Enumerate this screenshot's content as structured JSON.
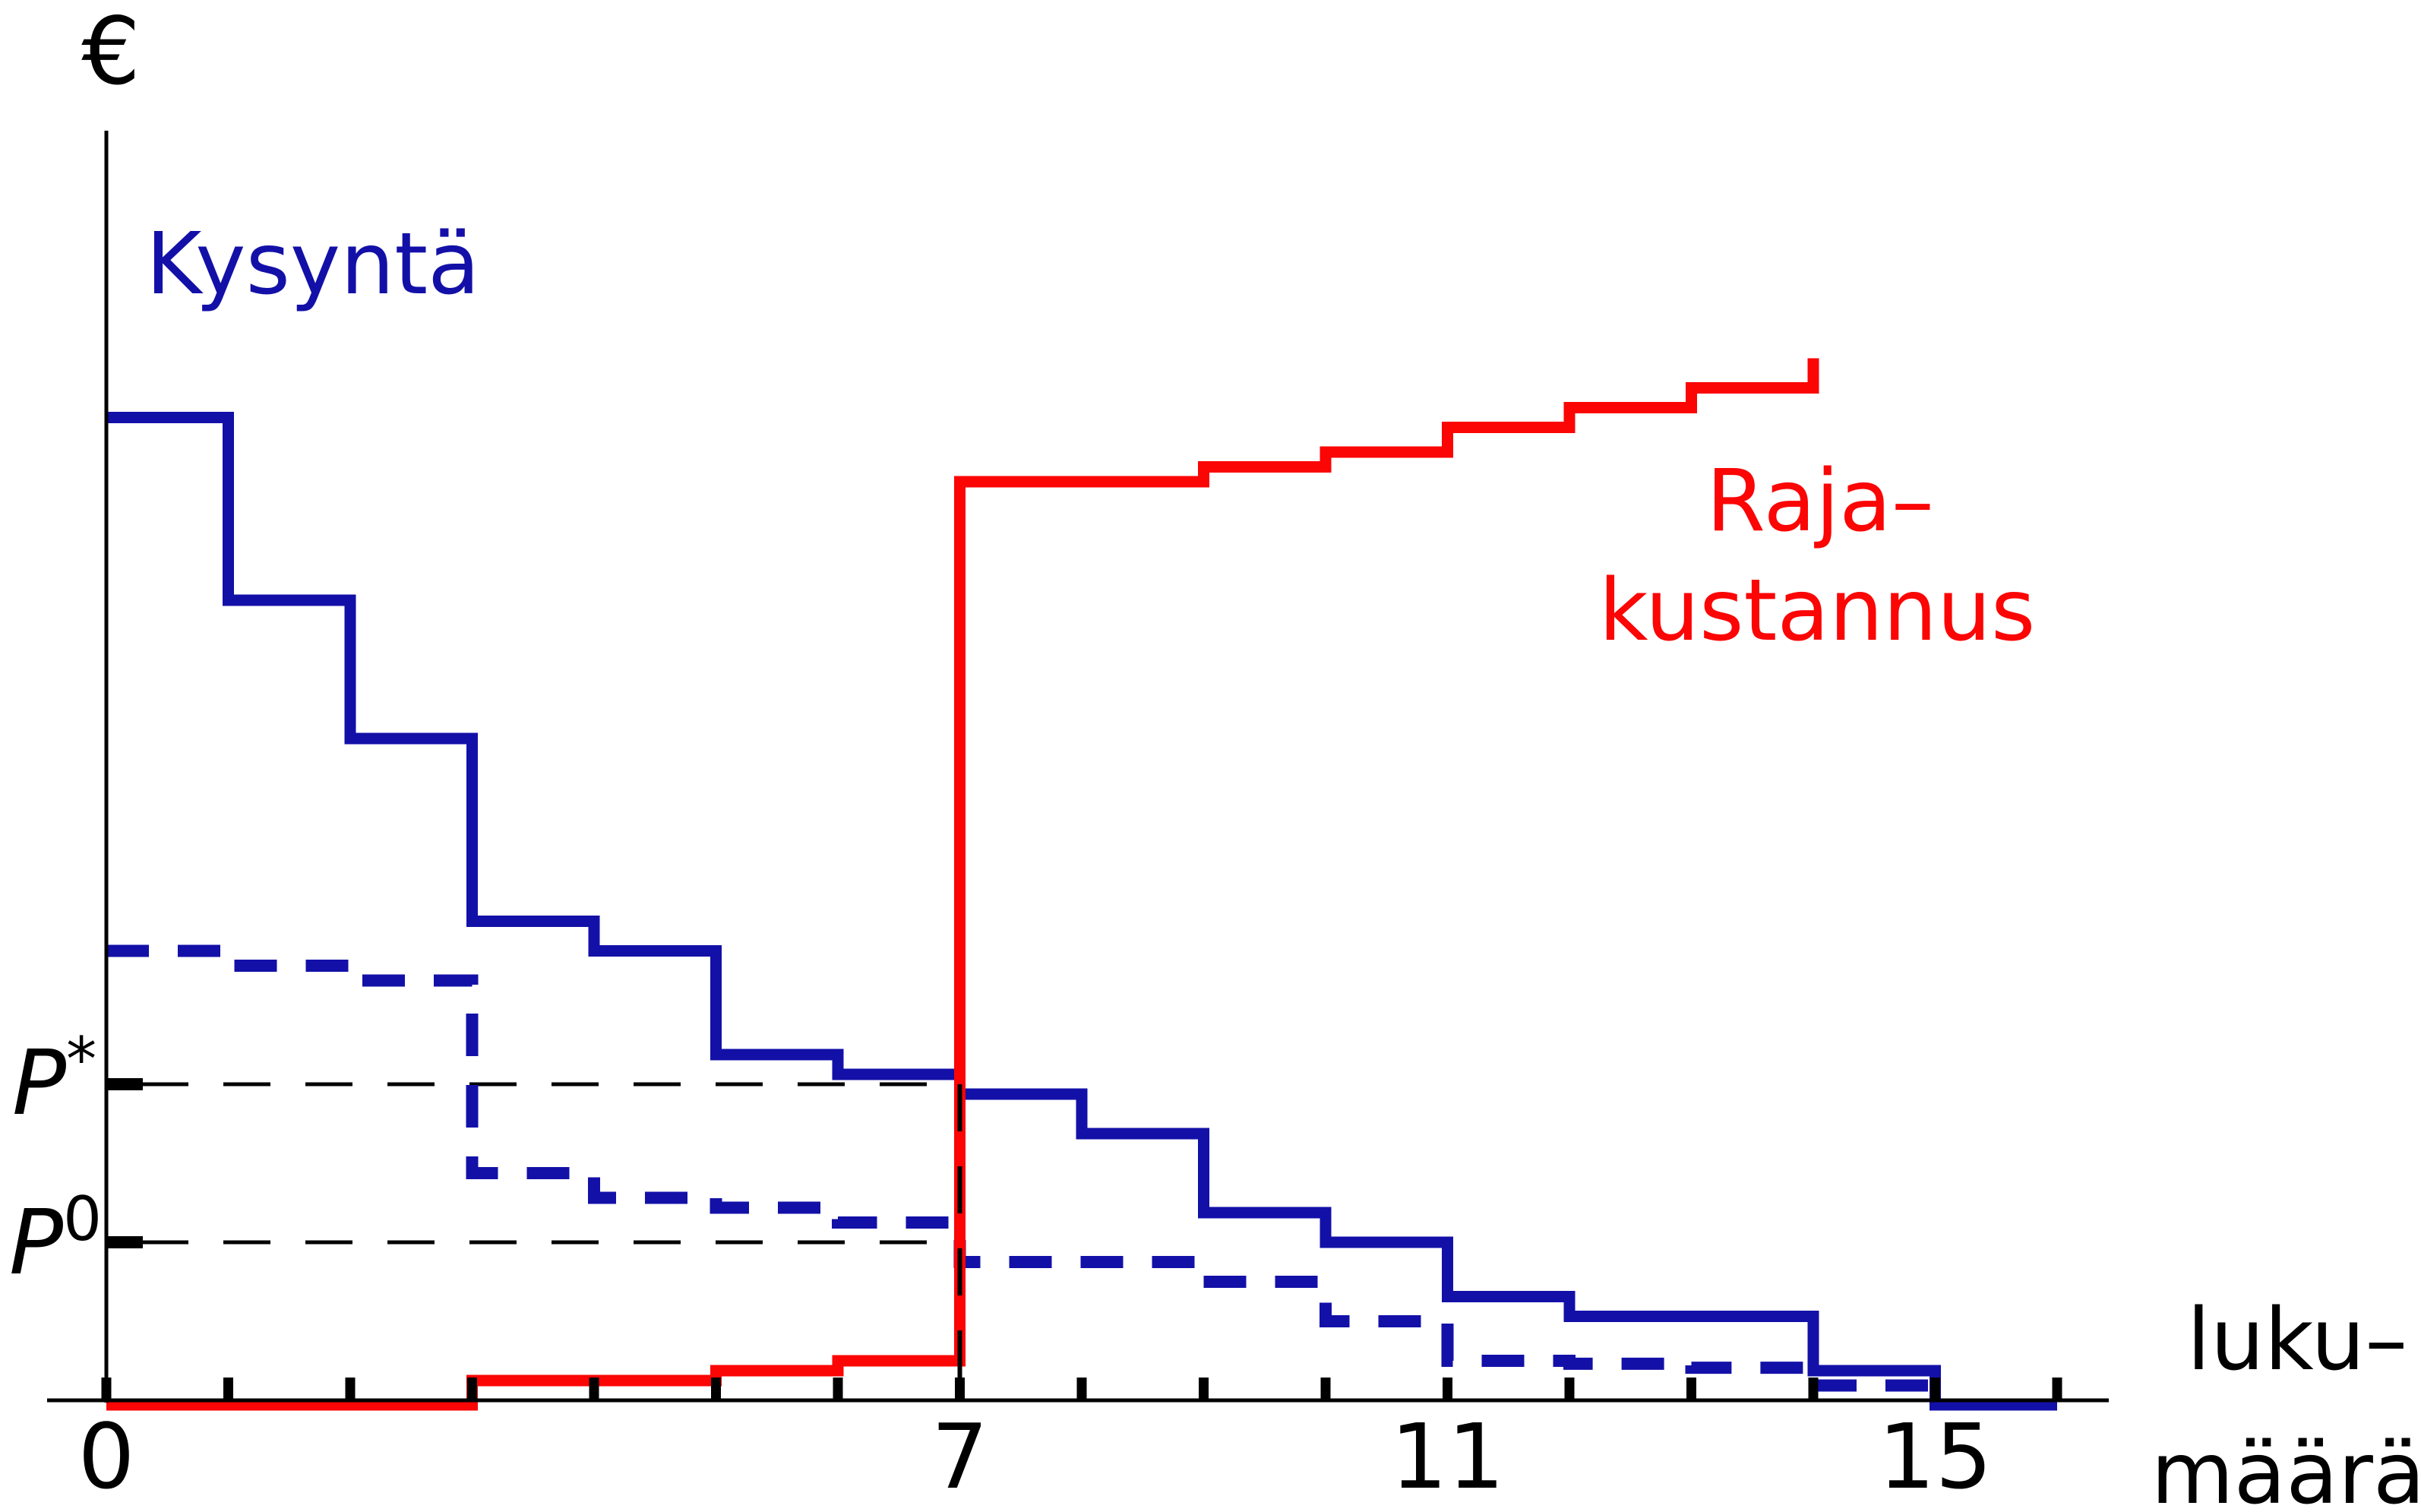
{
  "labels": {
    "currency_axis": "€",
    "demand": "Kysyntä",
    "marginal_cost_line1": "Raja–",
    "marginal_cost_line2": "kustannus",
    "price_star_base": "P",
    "price_star_sup": "*",
    "price_zero_base": "P",
    "price_zero_sup": "0",
    "quantity_line1": "luku–",
    "quantity_line2": "määrä"
  },
  "colors": {
    "demand_blue": "#1310a8",
    "cost_red": "#fb0505",
    "axis_black": "#000000",
    "background": "#ffffff"
  },
  "chart_data": {
    "type": "line",
    "subtype": "step-staircase",
    "title": "",
    "xlabel": "lukumäärä",
    "ylabel": "€",
    "x_axis": {
      "min": 0,
      "max": 16.4,
      "ticks": [
        0,
        1,
        2,
        3,
        4,
        5,
        6,
        7,
        8,
        9,
        10,
        11,
        12,
        13,
        14,
        15,
        16
      ],
      "labeled_ticks": [
        {
          "unit": 0,
          "label": "0"
        },
        {
          "unit": 7,
          "label": "7"
        },
        {
          "unit": 11,
          "label": "11"
        },
        {
          "unit": 15,
          "label": "15"
        }
      ]
    },
    "y_axis": {
      "min": 0,
      "max": 110,
      "numeric_labels_shown": false,
      "scale_note": "relative € scale, 100 = first demand step",
      "reference_prices": [
        {
          "name": "P*",
          "value": 32
        },
        {
          "name": "P0",
          "value": 16
        }
      ]
    },
    "legend_position": "labels next to curves",
    "grid": false,
    "series": [
      {
        "name": "Kysyntä (demand)",
        "style": "solid",
        "color_key": "demand_blue",
        "steps": [
          [
            0,
            1,
            99.5
          ],
          [
            1,
            2,
            81
          ],
          [
            2,
            3,
            67
          ],
          [
            3,
            4,
            48.5
          ],
          [
            4,
            5,
            45.5
          ],
          [
            5,
            6,
            35
          ],
          [
            6,
            7,
            33
          ],
          [
            7,
            8,
            31
          ],
          [
            8,
            9,
            27
          ],
          [
            9,
            10,
            19
          ],
          [
            10,
            11,
            16
          ],
          [
            11,
            12,
            10.5
          ],
          [
            12,
            14,
            8.5
          ],
          [
            14,
            15,
            3
          ],
          [
            15,
            16,
            0
          ]
        ]
      },
      {
        "name": "Kysyntä, alempi (dashed demand)",
        "style": "dashed",
        "color_key": "demand_blue",
        "steps": [
          [
            0,
            1,
            45.5
          ],
          [
            1,
            2,
            44
          ],
          [
            2,
            3,
            42.5
          ],
          [
            3,
            4,
            23
          ],
          [
            4,
            5,
            20.5
          ],
          [
            5,
            6,
            19.5
          ],
          [
            6,
            7,
            18
          ],
          [
            7,
            9,
            14
          ],
          [
            9,
            10,
            12
          ],
          [
            10,
            11,
            8
          ],
          [
            11,
            12,
            4
          ],
          [
            12,
            13,
            3.7
          ],
          [
            13,
            14,
            3.3
          ],
          [
            14,
            15,
            1.5
          ]
        ]
      },
      {
        "name": "Rajakustannus (marginal cost)",
        "style": "solid",
        "color_key": "cost_red",
        "steps": [
          [
            0,
            3,
            0
          ],
          [
            3,
            5,
            2
          ],
          [
            5,
            6,
            3
          ],
          [
            6,
            7,
            4
          ],
          [
            7,
            9,
            93
          ],
          [
            9,
            10,
            94.5
          ],
          [
            10,
            11,
            96
          ],
          [
            11,
            12,
            98.5
          ],
          [
            12,
            13,
            100.5
          ],
          [
            13,
            14,
            102.5
          ]
        ],
        "end_spike_to": 105.5
      }
    ],
    "annotations": {
      "equilibrium_quantity": 7,
      "p_star_hline": {
        "value": 32,
        "from_x": 0,
        "to_x": 7
      },
      "p_zero_hline": {
        "value": 16,
        "from_x": 0,
        "to_x": 7
      },
      "vline_at_equilibrium": {
        "x": 7,
        "from_value": 32,
        "to_value": 0
      }
    }
  }
}
